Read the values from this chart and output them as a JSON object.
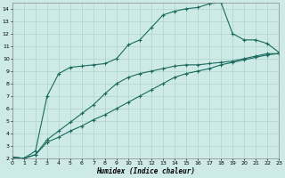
{
  "xlabel": "Humidex (Indice chaleur)",
  "bg_color": "#ceeae7",
  "grid_color": "#afd4cf",
  "line_color": "#1a6b5e",
  "xlim": [
    0,
    23
  ],
  "ylim": [
    2,
    14.5
  ],
  "xticks": [
    0,
    1,
    2,
    3,
    4,
    5,
    6,
    7,
    8,
    9,
    10,
    11,
    12,
    13,
    14,
    15,
    16,
    17,
    18,
    19,
    20,
    21,
    22,
    23
  ],
  "yticks": [
    2,
    3,
    4,
    5,
    6,
    7,
    8,
    9,
    10,
    11,
    12,
    13,
    14
  ],
  "line1_x": [
    0,
    1,
    2,
    3,
    4,
    5,
    6,
    7,
    8,
    9,
    10,
    11,
    12,
    13,
    14,
    15,
    16,
    17,
    18,
    19,
    20,
    21,
    22,
    23
  ],
  "line1_y": [
    2.1,
    2.0,
    2.3,
    3.3,
    3.7,
    4.2,
    4.6,
    5.1,
    5.5,
    6.0,
    6.5,
    7.0,
    7.5,
    8.0,
    8.5,
    8.8,
    9.0,
    9.2,
    9.5,
    9.7,
    9.9,
    10.1,
    10.3,
    10.4
  ],
  "line2_x": [
    0,
    1,
    2,
    3,
    4,
    5,
    6,
    7,
    8,
    9,
    10,
    11,
    12,
    13,
    14,
    15,
    16,
    17,
    18,
    19,
    20,
    21,
    22,
    23
  ],
  "line2_y": [
    2.1,
    2.0,
    2.3,
    3.5,
    4.2,
    4.9,
    5.6,
    6.3,
    7.2,
    8.0,
    8.5,
    8.8,
    9.0,
    9.2,
    9.4,
    9.5,
    9.5,
    9.6,
    9.7,
    9.8,
    10.0,
    10.2,
    10.4,
    10.4
  ],
  "line3_x": [
    0,
    1,
    2,
    3,
    4,
    5,
    6,
    7,
    8,
    9,
    10,
    11,
    12,
    13,
    14,
    15,
    16,
    17,
    18,
    19,
    20,
    21,
    22,
    23
  ],
  "line3_y": [
    2.1,
    2.0,
    2.6,
    7.0,
    8.8,
    9.3,
    9.4,
    9.5,
    9.6,
    10.0,
    11.1,
    11.5,
    12.5,
    13.5,
    13.8,
    14.0,
    14.1,
    14.4,
    14.5,
    12.0,
    11.5,
    11.5,
    11.2,
    10.5
  ]
}
